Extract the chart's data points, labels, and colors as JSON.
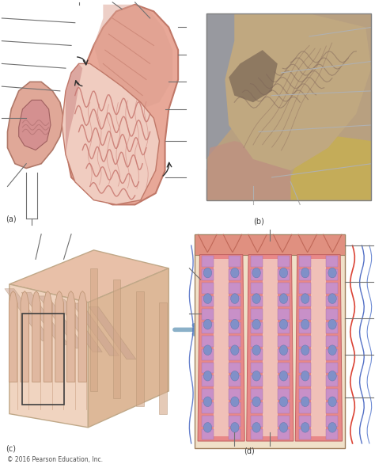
{
  "bg_color": "#ffffff",
  "copyright": "© 2016 Pearson Education, Inc.",
  "panel_labels": [
    "(a)",
    "(b)",
    "(c)",
    "(d)"
  ],
  "line_color": "#707070",
  "panel_label_color": "#404040",
  "arrow_color": "#8ab0c8",
  "stomach": {
    "outer_color": "#e8a898",
    "outer_edge": "#c07868",
    "muscle_color": "#d4887a",
    "inner_lining_color": "#e8c0b8",
    "rugae_color": "#c87870",
    "pylorus_color": "#d09090",
    "dark_region": "#b06878"
  },
  "photo": {
    "border_color": "#888888",
    "bg": "#b8a080",
    "tissue_dark": "#8a7060",
    "tissue_mid": "#c0a880",
    "tissue_light": "#d4b890",
    "tissue_pink": "#c09070",
    "left_blue": "#8090a8",
    "yellow": "#d4b860"
  },
  "block3d": {
    "top_color": "#e8c0a8",
    "front_color": "#f0d4c0",
    "side_color": "#ddb898",
    "fold_color": "#c8a090",
    "fold_inner": "#b89080",
    "bg_cream": "#f5e8d8"
  },
  "histo": {
    "bg": "#f0e0c8",
    "top_surface": "#e09080",
    "pit_color": "#c07060",
    "gland_outer": "#e87878",
    "gland_edge": "#c05858",
    "cell_pink": "#e8a0a0",
    "cell_purple": "#c890c8",
    "cell_purple_edge": "#a870a8",
    "cell_blue": "#8090c8",
    "vessel_red": "#d83020",
    "vessel_blue": "#4060c0",
    "vessel_blue2": "#6080d0",
    "lumen_color": "#e8c0b8",
    "border_color": "#a08060"
  }
}
